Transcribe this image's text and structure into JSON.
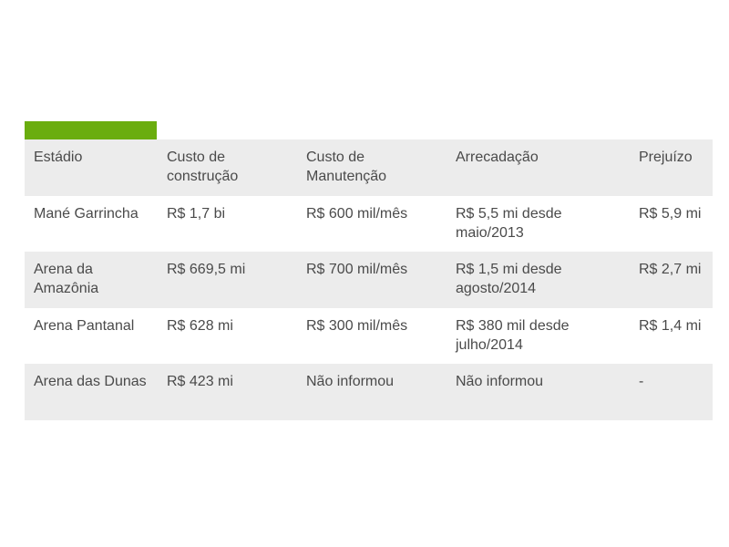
{
  "accent_color": "#6aad0e",
  "table": {
    "headers": [
      "Estádio",
      "Custo de construção",
      "Custo de Manutenção",
      "Arrecadação",
      "Prejuízo"
    ],
    "rows": [
      [
        "Mané Garrincha",
        "R$ 1,7 bi",
        "R$ 600 mil/mês",
        "R$ 5,5 mi desde maio/2013",
        "R$ 5,9 mi"
      ],
      [
        "Arena da Amazônia",
        "R$ 669,5 mi",
        "R$ 700 mil/mês",
        "R$ 1,5 mi desde agosto/2014",
        "R$ 2,7 mi"
      ],
      [
        "Arena Pantanal",
        "R$ 628 mi",
        "R$ 300 mil/mês",
        "R$ 380 mil desde julho/2014",
        "R$ 1,4 mi"
      ],
      [
        "Arena das Dunas",
        "R$ 423 mi",
        "Não informou",
        "Não informou",
        "-"
      ]
    ]
  }
}
